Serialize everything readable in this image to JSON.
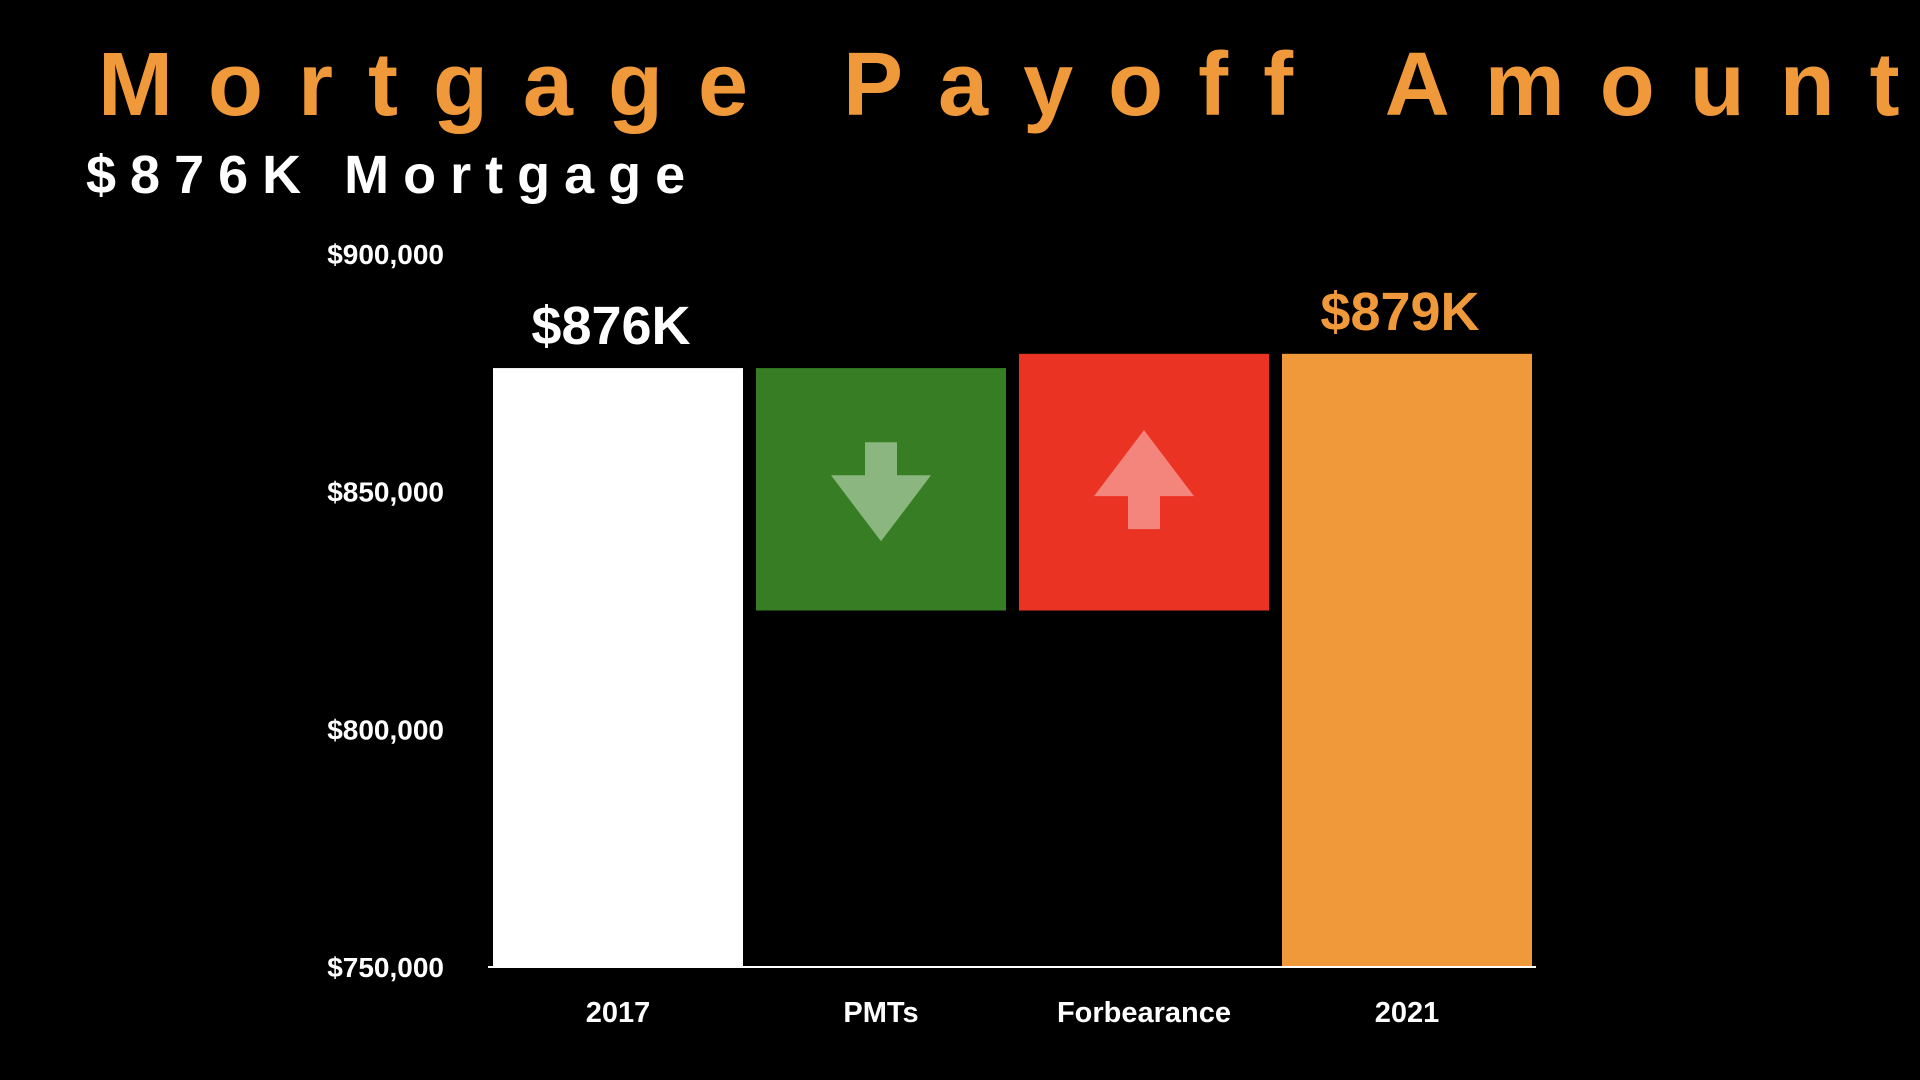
{
  "header": {
    "title": "Mortgage Payoff Amount",
    "subtitle": "$876K Mortgage"
  },
  "colors": {
    "title": "#f0993a",
    "subtitle": "#ffffff",
    "axis": "#ffffff"
  },
  "chart_data": {
    "type": "bar",
    "variant": "waterfall",
    "categories": [
      "2017",
      "PMTs",
      "Forbearance",
      "2021"
    ],
    "bars": [
      {
        "category": "2017",
        "kind": "total",
        "low": 750000,
        "high": 876000,
        "color": "#ffffff",
        "label": "$876K",
        "label_color": "#ffffff"
      },
      {
        "category": "PMTs",
        "kind": "decrease",
        "low": 825000,
        "high": 876000,
        "color": "#367d24",
        "icon": "arrow-down-icon",
        "icon_color": "#8cb67f",
        "label": "",
        "label_color": ""
      },
      {
        "category": "Forbearance",
        "kind": "increase",
        "low": 825000,
        "high": 879000,
        "color": "#eb3324",
        "icon": "arrow-up-icon",
        "icon_color": "#f3857d",
        "label": "",
        "label_color": ""
      },
      {
        "category": "2021",
        "kind": "total",
        "low": 750000,
        "high": 879000,
        "color": "#f0993a",
        "label": "$879K",
        "label_color": "#f0993a"
      }
    ],
    "y_ticks": [
      {
        "value": 750000,
        "label": "$750,000"
      },
      {
        "value": 800000,
        "label": "$800,000"
      },
      {
        "value": 850000,
        "label": "$850,000"
      },
      {
        "value": 900000,
        "label": "$900,000"
      }
    ],
    "ylim": [
      750000,
      900000
    ],
    "grid": false,
    "legend": "none"
  }
}
